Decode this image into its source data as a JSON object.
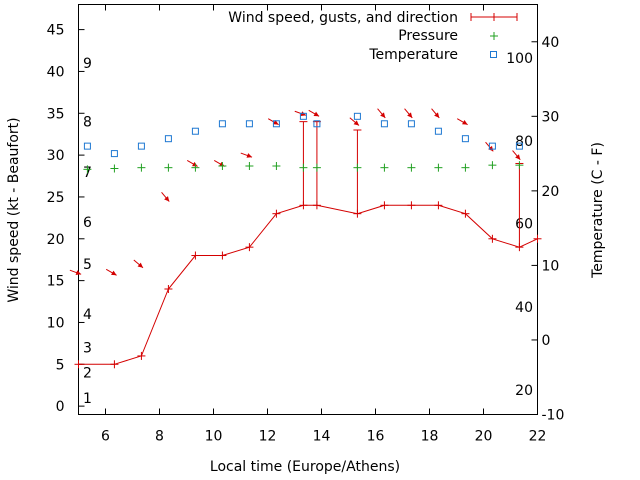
{
  "chart_data": {
    "type": "line",
    "xlabel": "Local time (Europe/Athens)",
    "ylabel_left": "Wind speed (kt - Beaufort)",
    "ylabel_right": "Temperature (C - F)",
    "xlim": [
      5,
      22
    ],
    "ylim_left": [
      -1,
      48
    ],
    "ylim_right": [
      -10,
      45
    ],
    "x_ticks": [
      6,
      8,
      10,
      12,
      14,
      16,
      18,
      20,
      22
    ],
    "y_left_ticks": [
      0,
      5,
      10,
      15,
      20,
      25,
      30,
      35,
      40,
      45
    ],
    "y_right_ticks": [
      -10,
      0,
      10,
      20,
      30,
      40
    ],
    "beaufort_labels": [
      {
        "text": "1",
        "kt": 1
      },
      {
        "text": "2",
        "kt": 4
      },
      {
        "text": "3",
        "kt": 7
      },
      {
        "text": "4",
        "kt": 11
      },
      {
        "text": "5",
        "kt": 17
      },
      {
        "text": "6",
        "kt": 22
      },
      {
        "text": "7",
        "kt": 28
      },
      {
        "text": "8",
        "kt": 34
      },
      {
        "text": "9",
        "kt": 41
      }
    ],
    "fahrenheit_labels": [
      {
        "text": "20",
        "celsius": -6.7
      },
      {
        "text": "40",
        "celsius": 4.4
      },
      {
        "text": "60",
        "celsius": 15.6
      },
      {
        "text": "80",
        "celsius": 26.7
      },
      {
        "text": "100",
        "celsius": 37.8
      }
    ],
    "legend": {
      "position": "top-right",
      "entries": [
        "Wind speed, gusts, and direction",
        "Pressure",
        "Temperature"
      ]
    },
    "wind": {
      "name": "Wind speed, gusts, and direction",
      "color": "#d40000",
      "x": [
        5,
        6.33,
        7.33,
        8.33,
        9.33,
        10.33,
        11.33,
        12.33,
        13.33,
        13.83,
        15.33,
        16.33,
        17.33,
        18.33,
        19.33,
        20.33,
        21.33,
        22
      ],
      "speed": [
        5,
        5,
        6,
        14,
        18,
        18,
        19,
        23,
        24,
        24,
        23,
        24,
        24,
        24,
        23,
        20,
        19,
        20
      ],
      "gust": [
        null,
        null,
        null,
        null,
        null,
        null,
        null,
        null,
        34,
        34,
        33,
        null,
        null,
        null,
        null,
        null,
        29,
        null
      ],
      "direction_deg": [
        290,
        300,
        310,
        320,
        300,
        300,
        290,
        300,
        290,
        300,
        310,
        320,
        320,
        320,
        300,
        320,
        320,
        null
      ]
    },
    "pressure": {
      "name": "Pressure",
      "color": "#21a021",
      "x": [
        5.33,
        6.33,
        7.33,
        8.33,
        9.33,
        10.33,
        11.33,
        12.33,
        13.33,
        13.83,
        15.33,
        16.33,
        17.33,
        18.33,
        19.33,
        20.33,
        21.33
      ],
      "kt_scale": [
        28.3,
        28.4,
        28.5,
        28.5,
        28.5,
        28.7,
        28.7,
        28.7,
        28.5,
        28.5,
        28.5,
        28.5,
        28.5,
        28.5,
        28.5,
        28.8,
        28.8
      ]
    },
    "temperature": {
      "name": "Temperature",
      "color": "#1e78d2",
      "x": [
        5.33,
        6.33,
        7.33,
        8.33,
        9.33,
        10.33,
        11.33,
        12.33,
        13.33,
        13.83,
        15.33,
        16.33,
        17.33,
        18.33,
        19.33,
        20.33,
        21.33
      ],
      "celsius": [
        26,
        25,
        26,
        27,
        28,
        29,
        29,
        29,
        30,
        29,
        30,
        29,
        29,
        28,
        27,
        26,
        26
      ]
    }
  }
}
